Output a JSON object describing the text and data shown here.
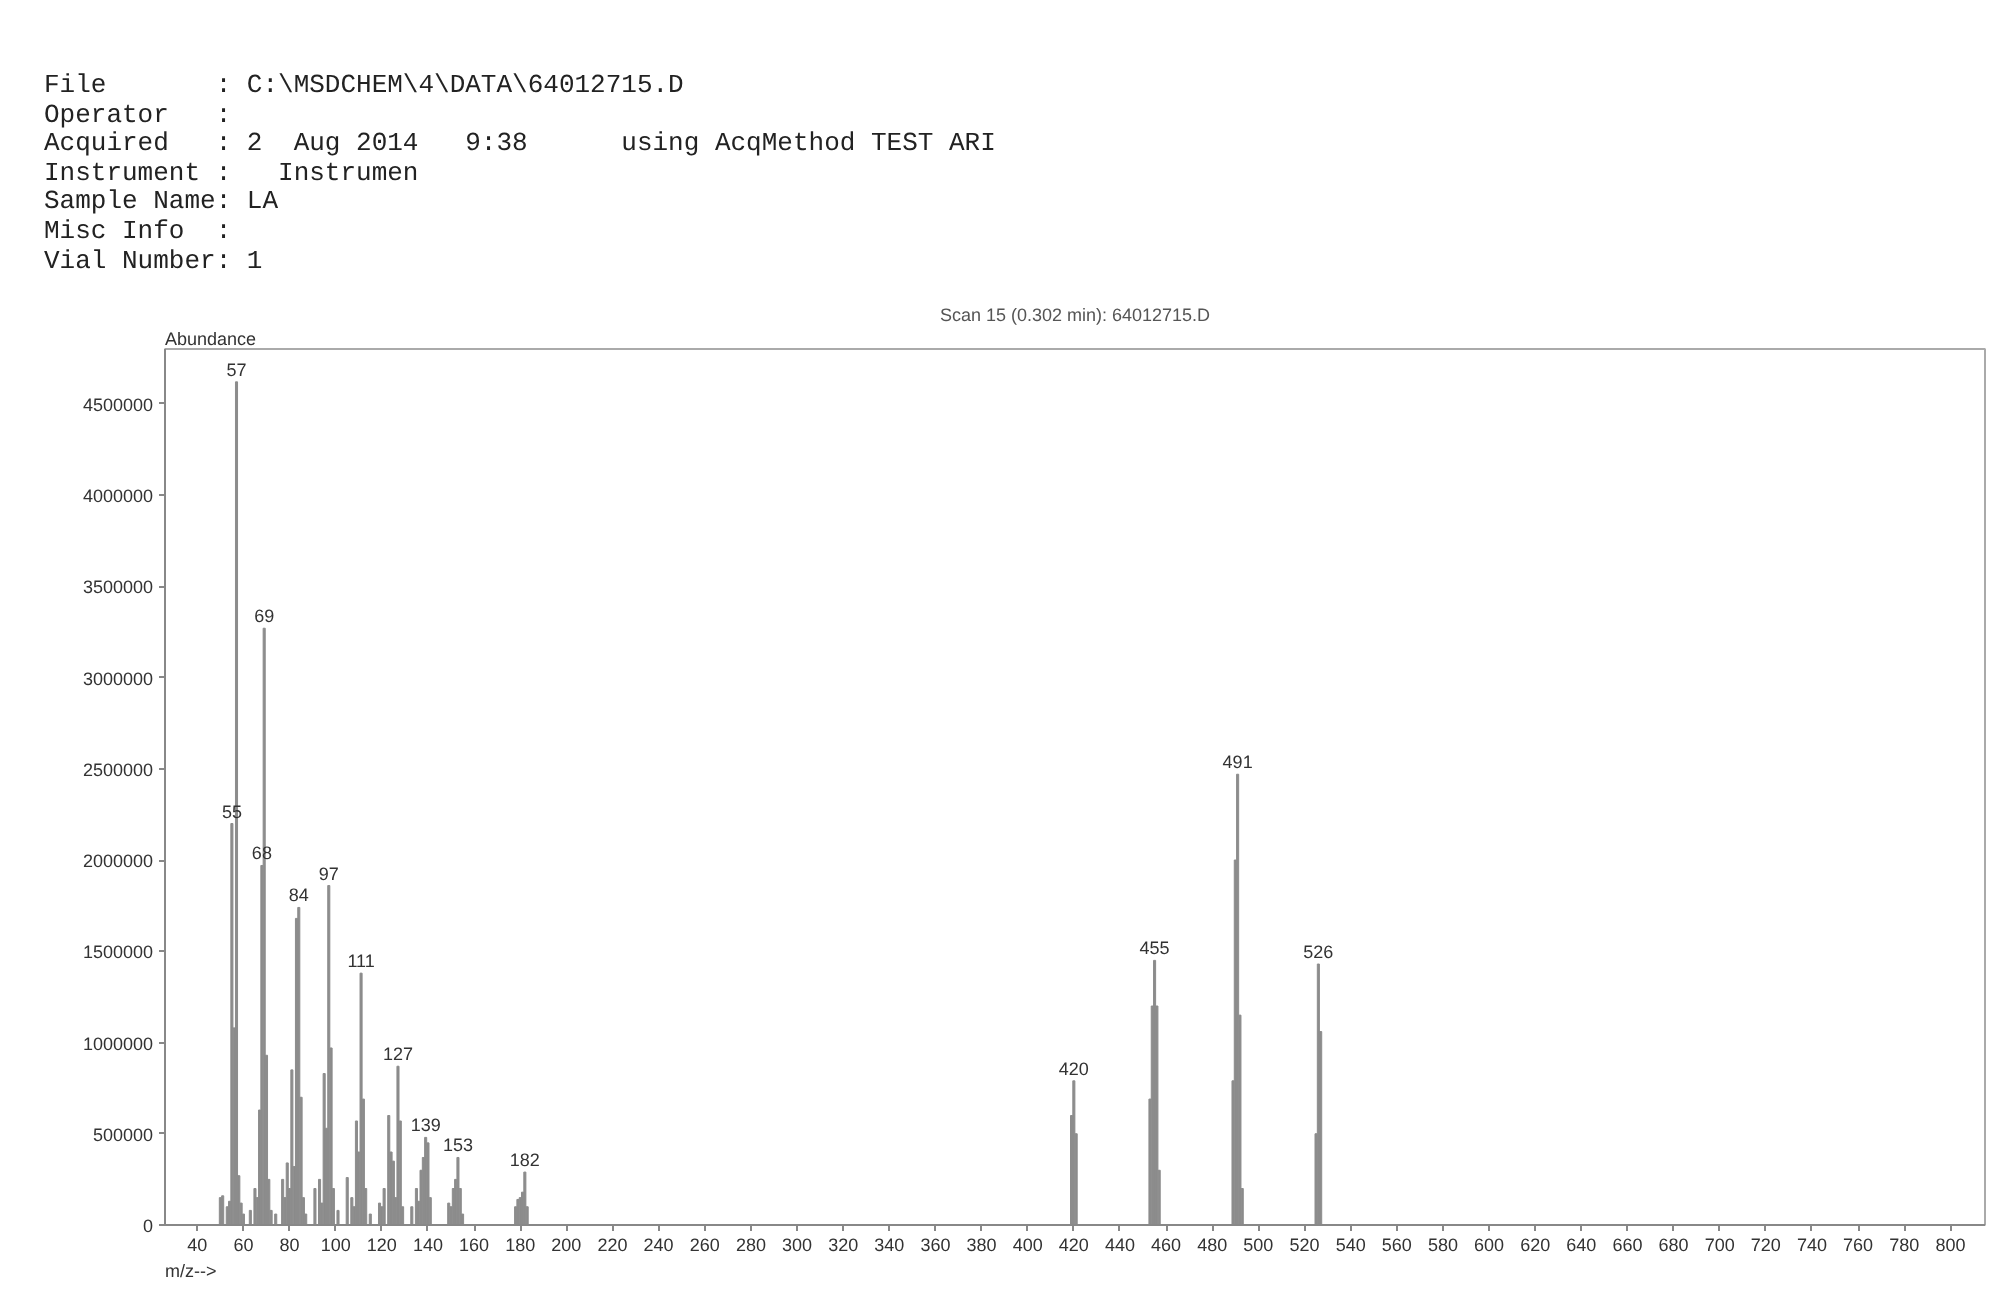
{
  "chart_data": {
    "type": "bar",
    "title": "Scan 15 (0.302 min): 64012715.D",
    "xlabel": "m/z-->",
    "ylabel": "Abundance",
    "annotations": [
      "File       : C:\\MSDCHEM\\4\\DATA\\64012715.D",
      "Operator   :",
      "Acquired   : 2  Aug 2014   9:38      using AcqMethod TEST ARI",
      "Instrument :   Instrumen",
      "Sample Name: LA",
      "Misc Info  :",
      "Vial Number: 1",
      {
        "text": "55",
        "x": 55,
        "y": 2200000
      },
      {
        "text": "57",
        "x": 57,
        "y": 4620000
      },
      {
        "text": "68",
        "x": 68,
        "y": 1970000
      },
      {
        "text": "69",
        "x": 69,
        "y": 3270000
      },
      {
        "text": "84",
        "x": 84,
        "y": 1740000
      },
      {
        "text": "97",
        "x": 97,
        "y": 1860000
      },
      {
        "text": "111",
        "x": 111,
        "y": 1380000
      },
      {
        "text": "127",
        "x": 127,
        "y": 870000
      },
      {
        "text": "139",
        "x": 139,
        "y": 480000
      },
      {
        "text": "153",
        "x": 153,
        "y": 370000
      },
      {
        "text": "182",
        "x": 182,
        "y": 290000
      },
      {
        "text": "420",
        "x": 420,
        "y": 790000
      },
      {
        "text": "455",
        "x": 455,
        "y": 1450000
      },
      {
        "text": "491",
        "x": 491,
        "y": 2470000
      },
      {
        "text": "526",
        "x": 526,
        "y": 1430000
      }
    ],
    "x": [
      50,
      51,
      53,
      54,
      55,
      56,
      57,
      58,
      59,
      60,
      63,
      65,
      66,
      67,
      68,
      69,
      70,
      71,
      72,
      74,
      77,
      78,
      79,
      80,
      81,
      82,
      83,
      84,
      85,
      86,
      87,
      91,
      93,
      94,
      95,
      96,
      97,
      98,
      99,
      101,
      105,
      107,
      108,
      109,
      110,
      111,
      112,
      113,
      115,
      119,
      120,
      121,
      123,
      124,
      125,
      126,
      127,
      128,
      129,
      133,
      135,
      136,
      137,
      138,
      139,
      140,
      141,
      149,
      150,
      151,
      152,
      153,
      154,
      155,
      178,
      179,
      180,
      181,
      182,
      183,
      419,
      420,
      421,
      453,
      454,
      455,
      456,
      457,
      489,
      490,
      491,
      492,
      493,
      525,
      526,
      527
    ],
    "values": [
      150000,
      160000,
      100000,
      130000,
      2200000,
      1080000,
      4620000,
      270000,
      120000,
      60000,
      80000,
      200000,
      150000,
      630000,
      1970000,
      3270000,
      930000,
      250000,
      80000,
      60000,
      250000,
      150000,
      340000,
      200000,
      850000,
      320000,
      1680000,
      1740000,
      700000,
      150000,
      60000,
      200000,
      250000,
      120000,
      830000,
      530000,
      1860000,
      970000,
      200000,
      80000,
      260000,
      150000,
      100000,
      570000,
      400000,
      1380000,
      690000,
      200000,
      60000,
      120000,
      100000,
      200000,
      600000,
      400000,
      350000,
      150000,
      870000,
      570000,
      100000,
      100000,
      200000,
      130000,
      300000,
      370000,
      480000,
      450000,
      150000,
      120000,
      100000,
      200000,
      250000,
      370000,
      200000,
      60000,
      100000,
      140000,
      150000,
      180000,
      290000,
      100000,
      600000,
      790000,
      500000,
      690000,
      1200000,
      1450000,
      1200000,
      300000,
      790000,
      2000000,
      2470000,
      1150000,
      200000,
      500000,
      1430000,
      1060000
    ],
    "color": "#8c8c8c",
    "xlim": [
      26,
      815
    ],
    "ylim": [
      0,
      4800000
    ],
    "xticks": [
      40,
      60,
      80,
      100,
      120,
      140,
      160,
      180,
      200,
      220,
      240,
      260,
      280,
      300,
      320,
      340,
      360,
      380,
      400,
      420,
      440,
      460,
      480,
      500,
      520,
      540,
      560,
      580,
      600,
      620,
      640,
      660,
      680,
      700,
      720,
      740,
      760,
      780,
      800
    ],
    "yticks": [
      0,
      500000,
      1000000,
      1500000,
      2000000,
      2500000,
      3000000,
      3500000,
      4000000,
      4500000
    ]
  }
}
